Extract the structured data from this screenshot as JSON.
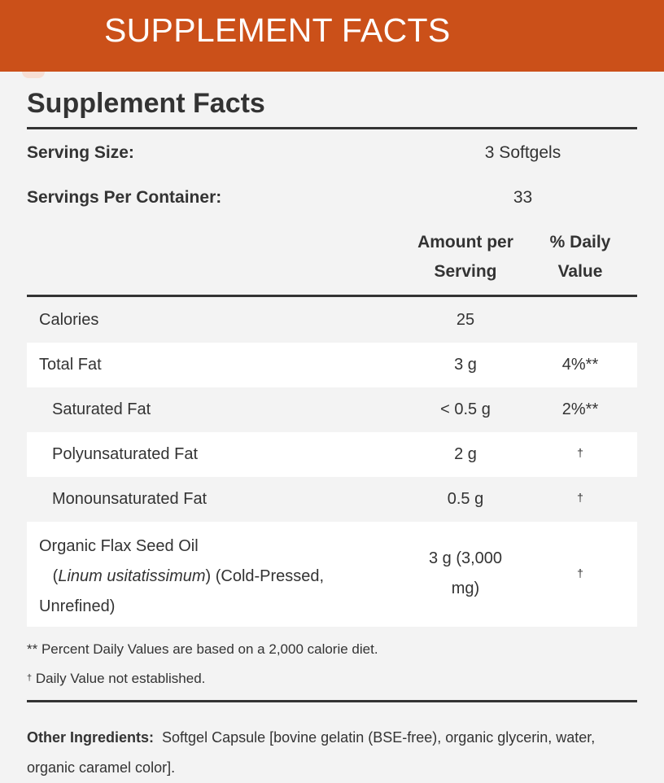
{
  "banner": {
    "title": "SUPPLEMENT FACTS"
  },
  "facts": {
    "title": "Supplement Facts",
    "serving_size_label": "Serving Size:",
    "serving_size_value": "3 Softgels",
    "servings_label": "Servings Per Container:",
    "servings_value": "33",
    "col_amount_line1": "Amount per",
    "col_amount_line2": "Serving",
    "col_dv_line1": "% Daily",
    "col_dv_line2": "Value",
    "rows": [
      {
        "name": "Calories",
        "amount": "25",
        "dv": ""
      },
      {
        "name": "Total Fat",
        "amount": "3 g",
        "dv": "4%**"
      },
      {
        "name": "Saturated Fat",
        "amount": "< 0.5 g",
        "dv": "2%**"
      },
      {
        "name": "Polyunsaturated Fat",
        "amount": "2 g",
        "dv": "†"
      },
      {
        "name": "Monounsaturated Fat",
        "amount": "0.5 g",
        "dv": "†"
      }
    ],
    "flax": {
      "name_line1": "Organic Flax Seed Oil",
      "name_latin": "Linum usitatissimum",
      "name_line2_rest": ") (Cold-Pressed,",
      "name_line3": "Unrefined)",
      "amount_line1": "3 g (3,000",
      "amount_line2": "mg)",
      "dv": "†"
    },
    "footnote_1": "** Percent Daily Values are based on a 2,000 calorie diet.",
    "footnote_2_mark": "†",
    "footnote_2": " Daily Value not established.",
    "other_label": "Other Ingredients:",
    "other_text": "Softgel Capsule [bovine gelatin (BSE-free), organic glycerin, water, organic caramel color]."
  },
  "colors": {
    "banner": "#cb5019",
    "background": "#f3f3f3",
    "text": "#333333"
  }
}
